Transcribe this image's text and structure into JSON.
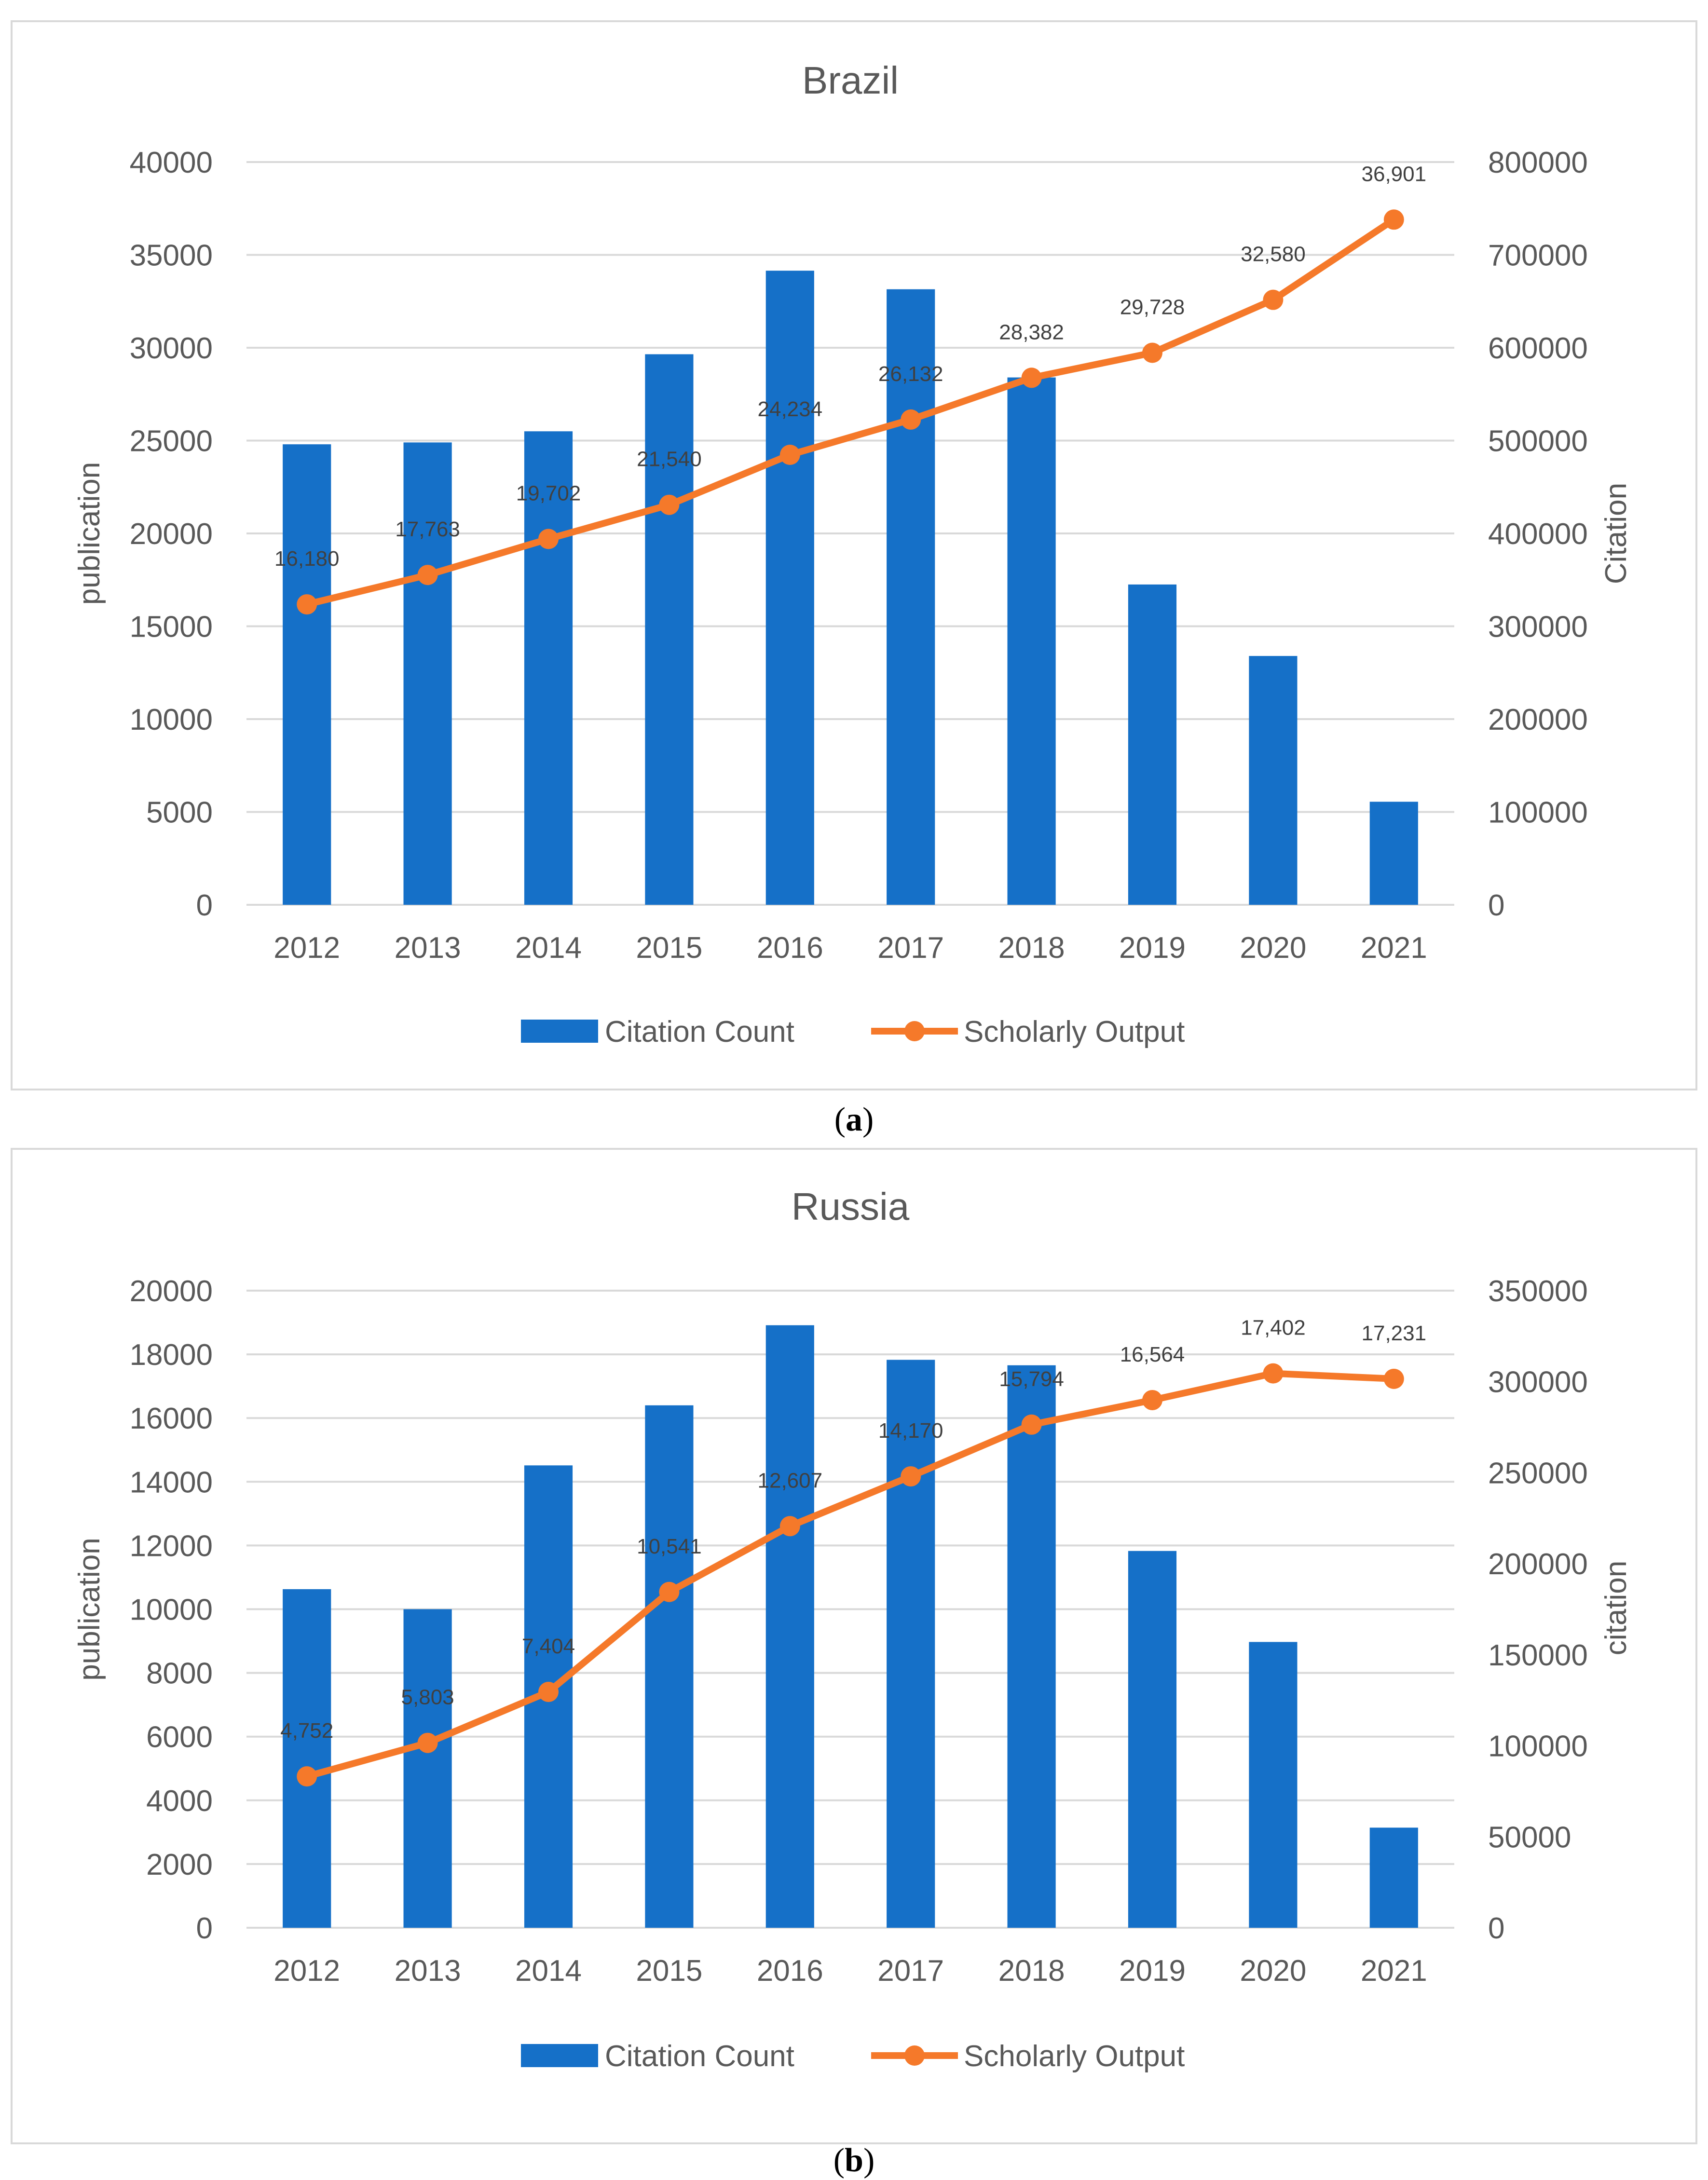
{
  "chart_data": [
    {
      "type": "bar+line",
      "title": "Brazil",
      "caption": "a",
      "xlabel": "",
      "ylabel_left": "publication",
      "ylabel_right": "Citation",
      "categories": [
        "2012",
        "2013",
        "2014",
        "2015",
        "2016",
        "2017",
        "2018",
        "2019",
        "2020",
        "2021"
      ],
      "left_axis": {
        "min": 0,
        "max": 40000,
        "step": 5000,
        "ticks": [
          "0",
          "5000",
          "10000",
          "15000",
          "20000",
          "25000",
          "30000",
          "35000",
          "40000"
        ]
      },
      "right_axis": {
        "min": 0,
        "max": 800000,
        "step": 100000,
        "ticks": [
          "0",
          "100000",
          "200000",
          "300000",
          "400000",
          "500000",
          "600000",
          "700000",
          "800000"
        ]
      },
      "series": [
        {
          "name": "Citation Count",
          "kind": "bar",
          "axis": "right",
          "values": [
            496000,
            498000,
            510000,
            593000,
            683000,
            663000,
            568000,
            345000,
            268000,
            111000
          ]
        },
        {
          "name": "Scholarly Output",
          "kind": "line",
          "axis": "left",
          "values": [
            16180,
            17763,
            19702,
            21540,
            24234,
            26132,
            28382,
            29728,
            32580,
            36901
          ],
          "labels": [
            "16,180",
            "17,763",
            "19,702",
            "21,540",
            "24,234",
            "26,132",
            "28,382",
            "29,728",
            "32,580",
            "36,901"
          ]
        }
      ],
      "colors": {
        "bar": "#1570c8",
        "line": "#f5792a",
        "axis_text": "#595959",
        "grid": "#d9d9d9",
        "title": "#595959",
        "data_label": "#404040"
      },
      "legend": {
        "placement": "bottom",
        "items": [
          "Citation Count",
          "Scholarly Output"
        ]
      }
    },
    {
      "type": "bar+line",
      "title": "Russia",
      "caption": "b",
      "xlabel": "",
      "ylabel_left": "publication",
      "ylabel_right": "citation",
      "categories": [
        "2012",
        "2013",
        "2014",
        "2015",
        "2016",
        "2017",
        "2018",
        "2019",
        "2020",
        "2021"
      ],
      "left_axis": {
        "min": 0,
        "max": 20000,
        "step": 2000,
        "ticks": [
          "0",
          "2000",
          "4000",
          "6000",
          "8000",
          "10000",
          "12000",
          "14000",
          "16000",
          "18000",
          "20000"
        ]
      },
      "right_axis": {
        "min": 0,
        "max": 350000,
        "step": 50000,
        "ticks": [
          "0",
          "50000",
          "100000",
          "150000",
          "200000",
          "250000",
          "300000",
          "350000"
        ]
      },
      "series": [
        {
          "name": "Citation Count",
          "kind": "bar",
          "axis": "right",
          "values": [
            186000,
            175000,
            254000,
            287000,
            331000,
            312000,
            309000,
            207000,
            157000,
            55000
          ]
        },
        {
          "name": "Scholarly Output",
          "kind": "line",
          "axis": "left",
          "values": [
            4752,
            5803,
            7404,
            10541,
            12607,
            14170,
            15794,
            16564,
            17402,
            17231
          ],
          "labels": [
            "4,752",
            "5,803",
            "7,404",
            "10,541",
            "12,607",
            "14,170",
            "15,794",
            "16,564",
            "17,402",
            "17,231"
          ]
        }
      ],
      "colors": {
        "bar": "#1570c8",
        "line": "#f5792a",
        "axis_text": "#595959",
        "grid": "#d9d9d9",
        "title": "#595959",
        "data_label": "#404040"
      },
      "legend": {
        "placement": "bottom",
        "items": [
          "Citation Count",
          "Scholarly Output"
        ]
      }
    }
  ]
}
